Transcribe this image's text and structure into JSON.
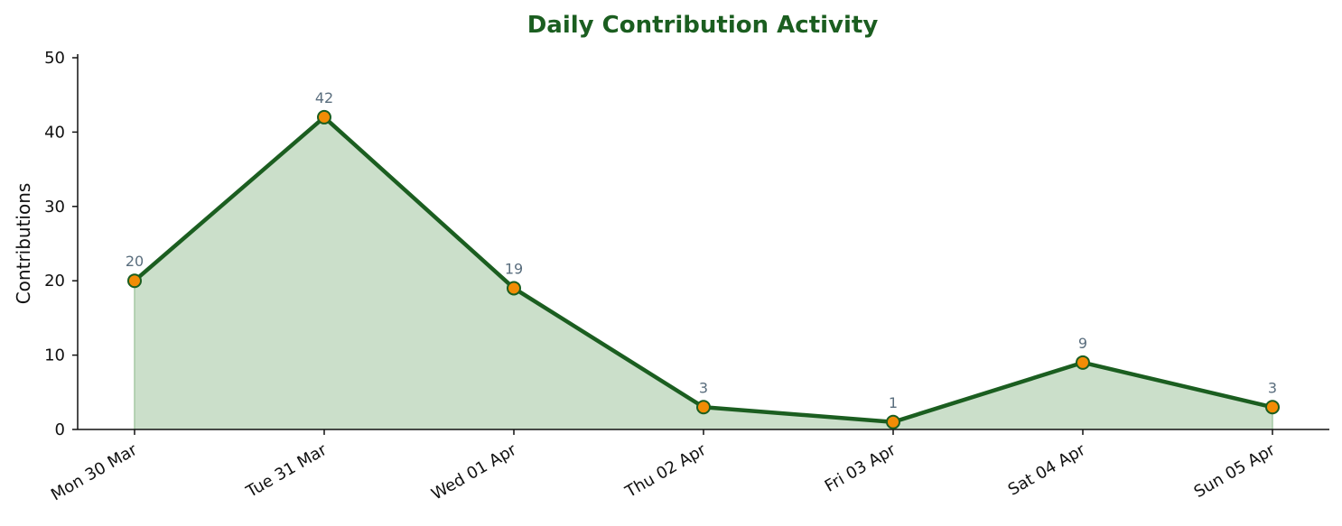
{
  "chart_data": {
    "type": "area",
    "title": "Daily Contribution Activity",
    "xlabel": "",
    "ylabel": "Contributions",
    "categories": [
      "Mon 30 Mar",
      "Tue 31 Mar",
      "Wed 01 Apr",
      "Thu 02 Apr",
      "Fri 03 Apr",
      "Sat 04 Apr",
      "Sun 05 Apr"
    ],
    "series": [
      {
        "values": [
          20,
          42,
          19,
          3,
          1,
          9,
          3
        ]
      }
    ],
    "ylim": [
      0,
      50
    ],
    "yticks": [
      0,
      10,
      20,
      30,
      40,
      50
    ],
    "grid": false,
    "legend": "none",
    "data_labels": true,
    "colors": {
      "title": "#1b5e20",
      "line": "#1b5e20",
      "fill": "#cbdfca",
      "fill_edge": "#a5c8a4",
      "marker_fill": "#f28c06",
      "marker_edge": "#1b5e20",
      "data_label": "#5a6e7e"
    }
  }
}
